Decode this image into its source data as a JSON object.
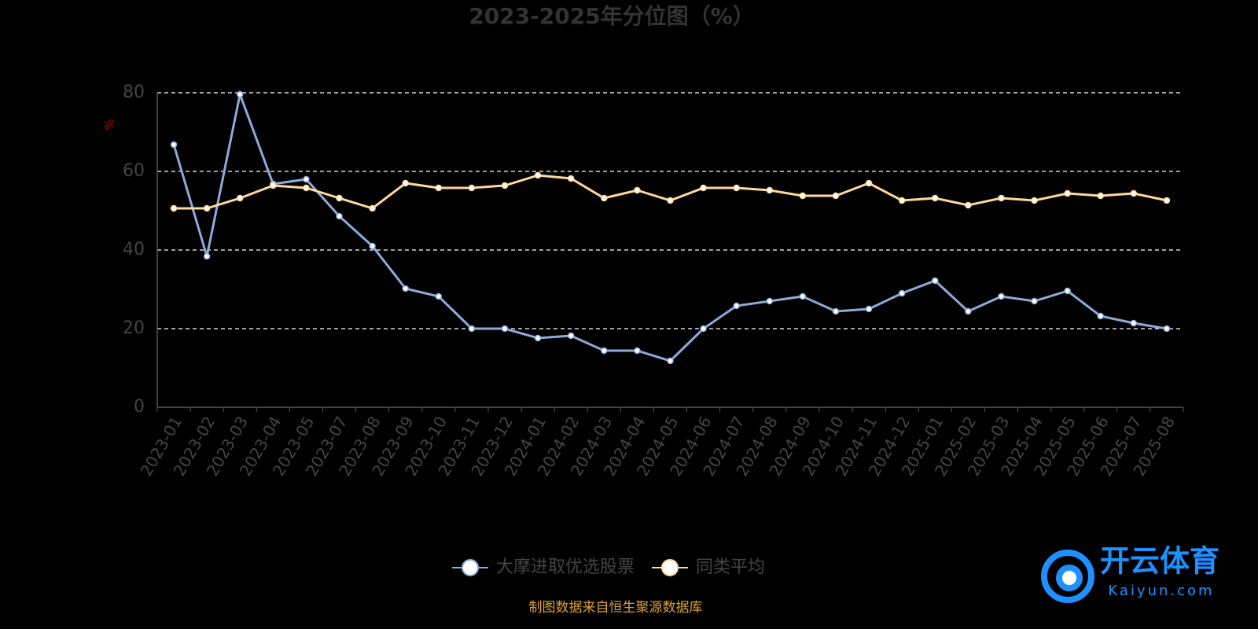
{
  "chart_data": {
    "type": "line",
    "title": "2023-2025年分位图（%）",
    "y_label": "%",
    "categories": [
      "2023-01",
      "2023-02",
      "2023-03",
      "2023-04",
      "2023-05",
      "2023-07",
      "2023-08",
      "2023-09",
      "2023-10",
      "2023-11",
      "2023-12",
      "2024-01",
      "2024-02",
      "2024-03",
      "2024-04",
      "2024-05",
      "2024-06",
      "2024-07",
      "2024-08",
      "2024-09",
      "2024-10",
      "2024-11",
      "2024-12",
      "2025-01",
      "2025-02",
      "2025-03",
      "2025-04",
      "2025-05",
      "2025-06",
      "2025-07",
      "2025-08"
    ],
    "series": [
      {
        "name": "大摩进取优选股票",
        "color": "#8eaadb",
        "values": [
          66.8,
          38.4,
          79.6,
          56.8,
          58,
          48.6,
          41,
          30.2,
          28.2,
          20,
          20,
          17.6,
          18.2,
          14.4,
          14.4,
          11.8,
          20,
          25.8,
          27,
          28.2,
          24.4,
          25,
          29,
          32.2,
          24.4,
          28.2,
          27,
          29.6,
          23.2,
          21.4,
          20
        ]
      },
      {
        "name": "同类平均",
        "color": "#ffd89b",
        "values": [
          50.6,
          50.6,
          53.2,
          56.4,
          55.8,
          53.2,
          50.6,
          57,
          55.8,
          55.8,
          56.4,
          59,
          58.2,
          53.2,
          55.2,
          52.6,
          55.8,
          55.8,
          55.2,
          53.8,
          53.8,
          57,
          52.6,
          53.2,
          51.4,
          53.2,
          52.6,
          54.4,
          53.8,
          54.4,
          52.6
        ]
      }
    ],
    "ylim": [
      0,
      80
    ],
    "yticks": [
      0,
      20,
      40,
      60,
      80
    ],
    "grid": true,
    "legend": "bottom",
    "source": "制图数据来自恒生聚源数据库"
  },
  "watermark": {
    "name": "开云体育",
    "url": "Kaiyun.com"
  }
}
